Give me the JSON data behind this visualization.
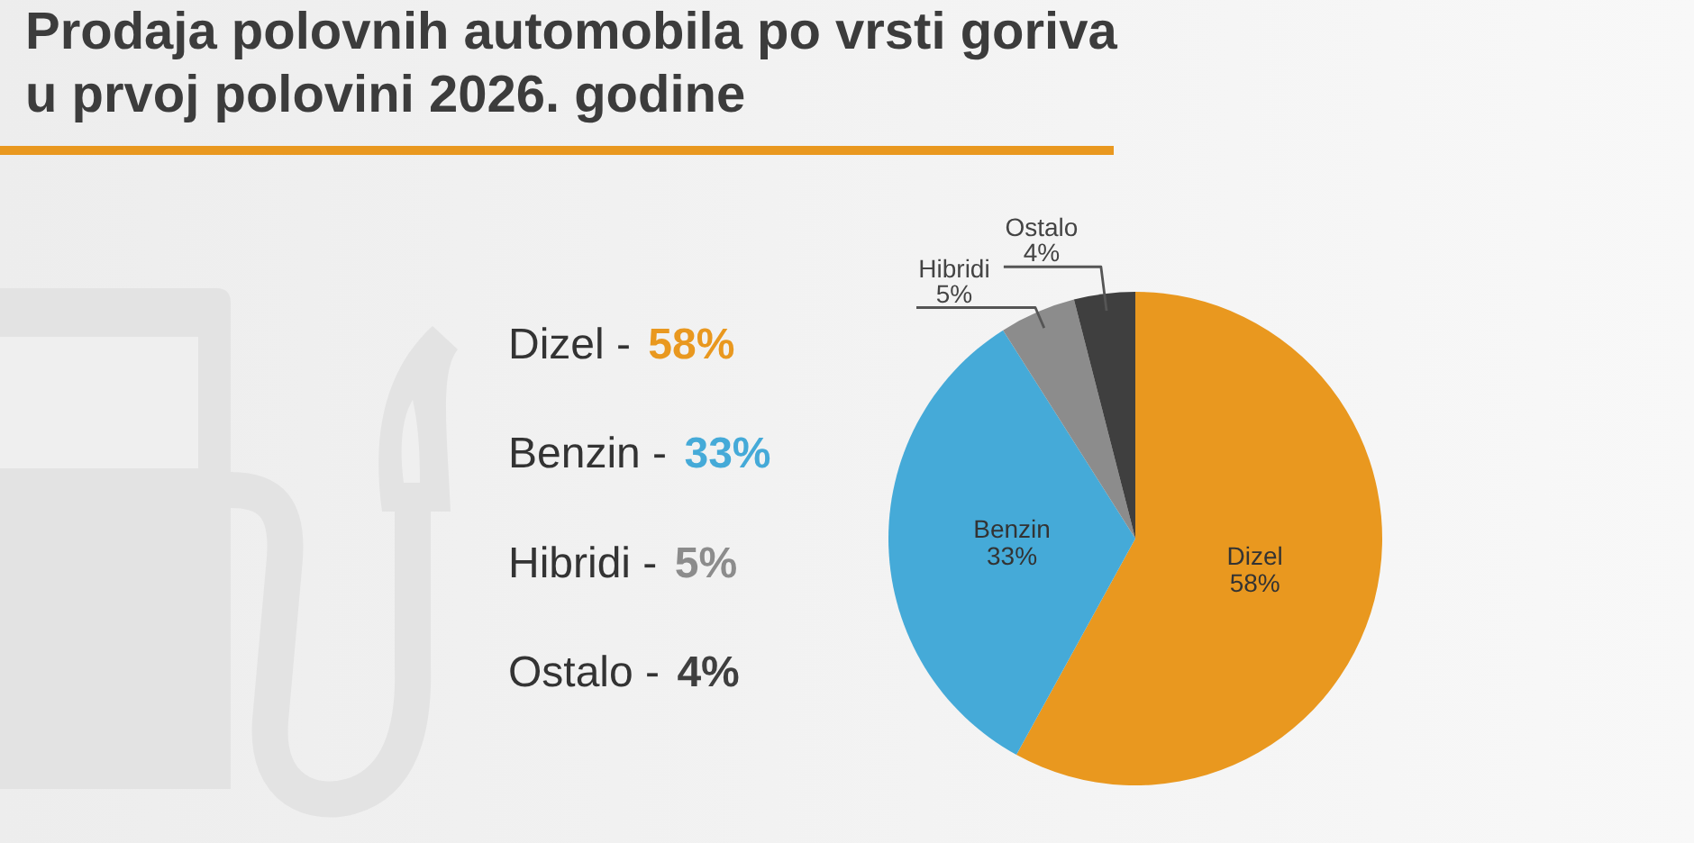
{
  "chart_data": {
    "type": "pie",
    "title": "Prodaja polovnih automobila po vrsti goriva\nu prvoj polovini 2026. godine",
    "categories": [
      "Dizel",
      "Benzin",
      "Hibridi",
      "Ostalo"
    ],
    "values": [
      58,
      33,
      5,
      4
    ],
    "colors": [
      "#e9981f",
      "#45aad8",
      "#8c8c8c",
      "#3f3f3f"
    ],
    "value_labels": [
      "58%",
      "33%",
      "5%",
      "4%"
    ],
    "annotations": [
      "Dizel - 58%",
      "Benzin - 33%",
      "Hibridi - 5%",
      "Ostalo - 4%"
    ]
  }
}
